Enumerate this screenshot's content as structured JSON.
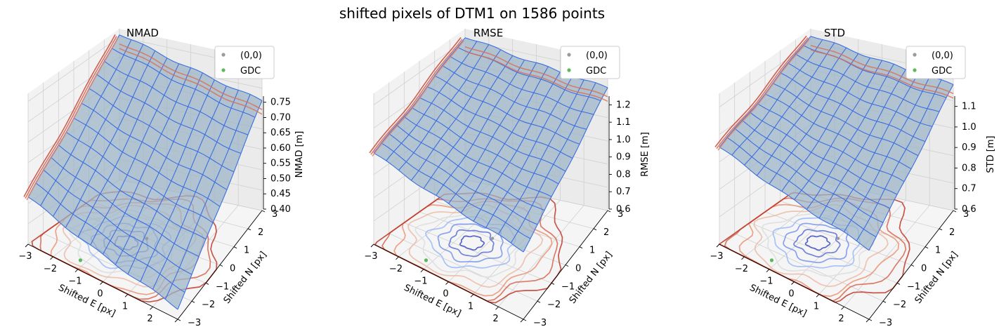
{
  "figure": {
    "suptitle": "shifted pixels of DTM1 on 1586 points"
  },
  "legend": {
    "location": "upper right",
    "entries": [
      {
        "label": "(0,0)",
        "color": "#9a9a9a"
      },
      {
        "label": "GDC",
        "color": "#5cb85c"
      }
    ]
  },
  "colors": {
    "surface_fill": "#9db4c8",
    "surface_wire": "#3b6fe0",
    "contour_low": "#3b4cc0",
    "contour_high": "#c03b26"
  },
  "chart_data": [
    {
      "type": "surface3d",
      "title": "NMAD",
      "xlabel": "Shifted E [px]",
      "ylabel": "Shifted N [px]",
      "zlabel": "NMAD [m]",
      "x_ticks": [
        "−3",
        "−2",
        "−1",
        "0",
        "1",
        "2",
        "3"
      ],
      "y_ticks": [
        "−2",
        "−1",
        "0",
        "1",
        "2",
        "3"
      ],
      "y_tick_first": "−3",
      "z_ticks": [
        "0.40",
        "0.45",
        "0.50",
        "0.55",
        "0.60",
        "0.65",
        "0.70",
        "0.75"
      ],
      "xlim": [
        -3,
        3
      ],
      "ylim": [
        -3,
        3
      ],
      "zlim": [
        0.4,
        0.77
      ],
      "grid": true,
      "surface_corners": {
        "x-3_y-3": 0.52,
        "x3_y-3": 0.43,
        "x-3_y3": 0.76,
        "x3_y3": 0.67
      },
      "gdc_point": {
        "x": -1.2,
        "y": -2.5
      },
      "origin_point": {
        "x": 0,
        "y": 0
      }
    },
    {
      "type": "surface3d",
      "title": "RMSE",
      "xlabel": "Shifted E [px]",
      "ylabel": "Shifted N [px]",
      "zlabel": "RMSE [m]",
      "x_ticks": [
        "−3",
        "−2",
        "−1",
        "0",
        "1",
        "2",
        "3"
      ],
      "y_ticks": [
        "−2",
        "−1",
        "0",
        "1",
        "2",
        "3"
      ],
      "y_tick_first": "−3",
      "z_ticks": [
        "0.6",
        "0.7",
        "0.8",
        "0.9",
        "1.0",
        "1.1",
        "1.2"
      ],
      "xlim": [
        -3,
        3
      ],
      "ylim": [
        -3,
        3
      ],
      "zlim": [
        0.6,
        1.25
      ],
      "grid": true,
      "surface_corners": {
        "x-3_y-3": 1.0,
        "x3_y-3": 0.9,
        "x-3_y3": 1.22,
        "x3_y3": 1.13
      },
      "gdc_point": {
        "x": -1.2,
        "y": -2.5
      },
      "origin_point": {
        "x": 0,
        "y": 0
      }
    },
    {
      "type": "surface3d",
      "title": "STD",
      "xlabel": "Shifted E [px]",
      "ylabel": "Shifted N [px]",
      "zlabel": "STD [m]",
      "x_ticks": [
        "−3",
        "−2",
        "−1",
        "0",
        "1",
        "2",
        "3"
      ],
      "y_ticks": [
        "−2",
        "−1",
        "0",
        "1",
        "2",
        "3"
      ],
      "y_tick_first": "−3",
      "z_ticks": [
        "0.6",
        "0.7",
        "0.8",
        "0.9",
        "1.0",
        "1.1"
      ],
      "xlim": [
        -3,
        3
      ],
      "ylim": [
        -3,
        3
      ],
      "zlim": [
        0.6,
        1.15
      ],
      "grid": true,
      "surface_corners": {
        "x-3_y-3": 0.96,
        "x3_y-3": 0.86,
        "x-3_y3": 1.13,
        "x3_y3": 1.06
      },
      "gdc_point": {
        "x": -1.2,
        "y": -2.5
      },
      "origin_point": {
        "x": 0,
        "y": 0
      }
    }
  ]
}
